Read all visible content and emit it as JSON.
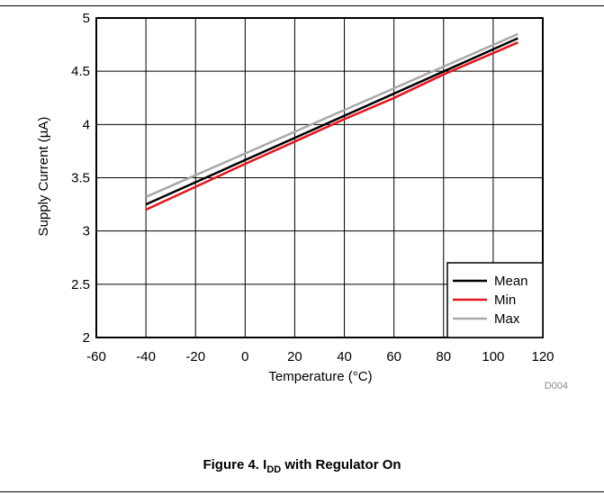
{
  "chart_data": {
    "type": "line",
    "title": "",
    "xlabel_prefix": "Temperature (",
    "xlabel_unit": "°C",
    "xlabel_suffix": ")",
    "ylabel_prefix": "Supply Current (",
    "ylabel_unit": "µA",
    "ylabel_suffix": ")",
    "xlim": [
      -60,
      120
    ],
    "ylim": [
      2,
      5
    ],
    "xticks": [
      -60,
      -40,
      -20,
      0,
      20,
      40,
      60,
      80,
      100,
      120
    ],
    "yticks": [
      "2",
      "2.5",
      "3",
      "3.5",
      "4",
      "4.5",
      "5"
    ],
    "grid": true,
    "legend_position": "bottom-right",
    "series": [
      {
        "name": "Mean",
        "color": "#000000",
        "x": [
          -40,
          110
        ],
        "y": [
          3.25,
          4.81
        ]
      },
      {
        "name": "Min",
        "color": "#e8141c",
        "x": [
          -40,
          0,
          20,
          40,
          60,
          80,
          110
        ],
        "y": [
          3.2,
          3.63,
          3.84,
          4.05,
          4.25,
          4.47,
          4.77
        ]
      },
      {
        "name": "Max",
        "color": "#a8a8a8",
        "x": [
          -40,
          110
        ],
        "y": [
          3.32,
          4.85
        ]
      }
    ],
    "figure_id": "D004"
  },
  "caption": {
    "prefix": "Figure 4. I",
    "sub": "DD",
    "suffix": " with Regulator On"
  }
}
